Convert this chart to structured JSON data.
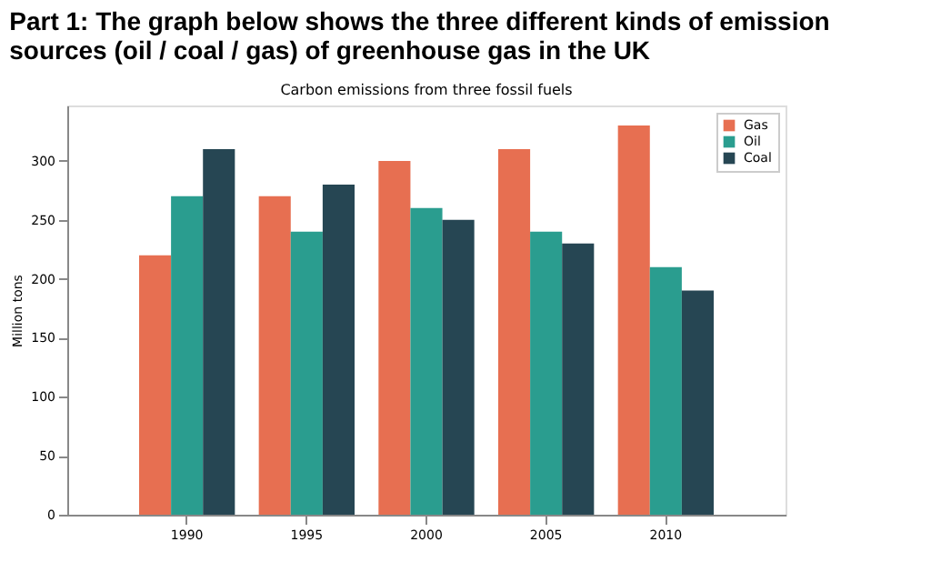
{
  "chart_data": {
    "type": "bar",
    "title": "Part 1: The graph below shows the three different kinds of emission sources (oil / coal / gas) of greenhouse gas in the UK",
    "subtitle": "Carbon emissions from three fossil fuels",
    "ylabel": "Million tons",
    "categories": [
      "1990",
      "1995",
      "2000",
      "2005",
      "2010"
    ],
    "series": [
      {
        "name": "Gas",
        "color": "#e76f51",
        "values": [
          220,
          270,
          300,
          310,
          330
        ]
      },
      {
        "name": "Oil",
        "color": "#2a9d8f",
        "values": [
          270,
          240,
          260,
          240,
          210
        ]
      },
      {
        "name": "Coal",
        "color": "#264653",
        "values": [
          310,
          280,
          250,
          230,
          190
        ]
      }
    ],
    "ylim": [
      0,
      347
    ],
    "yticks": [
      0,
      50,
      100,
      150,
      200,
      250,
      300
    ],
    "grid": false,
    "legend": "top right"
  }
}
